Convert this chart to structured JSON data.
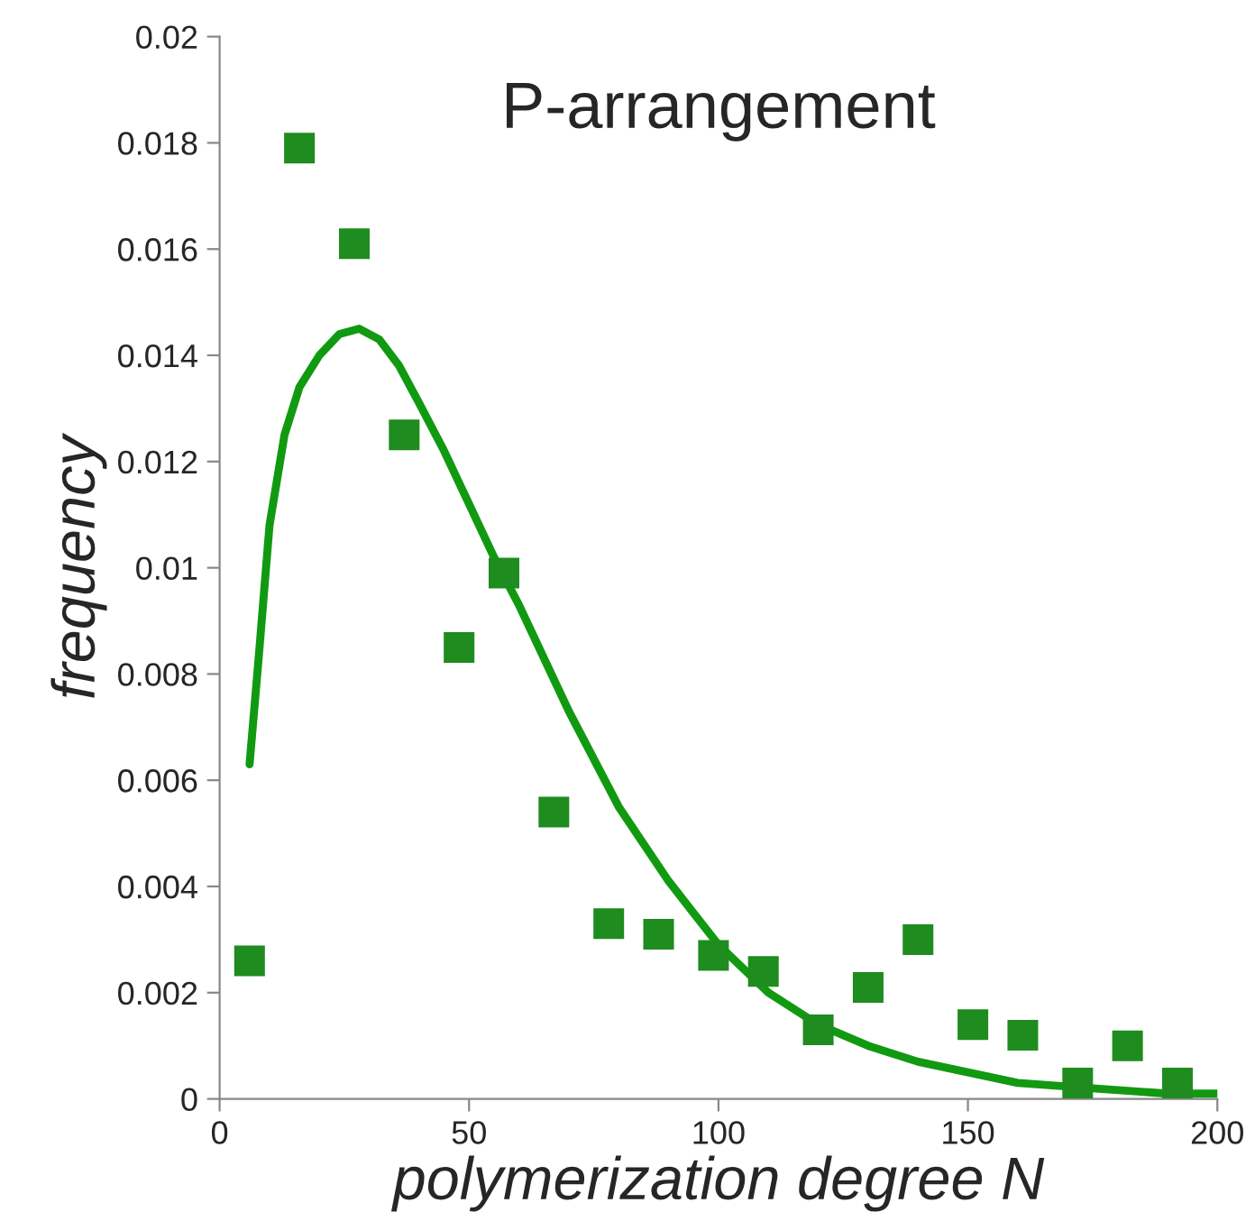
{
  "chart_data": {
    "type": "scatter",
    "title": "P-arrangement",
    "xlabel": "polymerization degree N",
    "ylabel": "frequency",
    "xlim": [
      0,
      200
    ],
    "xticks": [
      0,
      50,
      100,
      150,
      200
    ],
    "ylim": [
      0,
      0.02
    ],
    "yticks": [
      0,
      {
        "value": 0.002,
        "label": "0.002"
      },
      {
        "value": 0.004,
        "label": "0.004"
      },
      {
        "value": 0.006,
        "label": "0.006"
      },
      {
        "value": 0.008,
        "label": "0.008"
      },
      {
        "value": 0.01,
        "label": "0.01"
      },
      {
        "value": 0.012,
        "label": "0.012"
      },
      {
        "value": 0.014,
        "label": "0.014"
      },
      {
        "value": 0.016,
        "label": "0.016"
      },
      {
        "value": 0.018,
        "label": "0.018"
      },
      {
        "value": 0.02,
        "label": "0.02"
      }
    ],
    "grid": false,
    "marker": "square",
    "series": [
      {
        "color": "#1e8c1e",
        "x": [
          6,
          16,
          27,
          37,
          48,
          57,
          67,
          78,
          88,
          99,
          109,
          120,
          130,
          140,
          151,
          161,
          172,
          182,
          192
        ],
        "values": [
          0.0026,
          0.0179,
          0.0161,
          0.0125,
          0.0085,
          0.0099,
          0.0054,
          0.0033,
          0.0031,
          0.0027,
          0.0024,
          0.0013,
          0.0021,
          0.003,
          0.0014,
          0.0012,
          0.0003,
          0.001,
          0.0003
        ]
      },
      {
        "type": "line",
        "marker": "none",
        "color": "#119a11",
        "x": [
          6,
          8,
          10,
          13,
          16,
          20,
          24,
          28,
          32,
          36,
          40,
          45,
          50,
          55,
          60,
          70,
          80,
          90,
          100,
          110,
          120,
          130,
          140,
          150,
          160,
          175,
          190,
          200
        ],
        "values": [
          0.0063,
          0.0085,
          0.0108,
          0.0125,
          0.0134,
          0.014,
          0.0144,
          0.0145,
          0.0143,
          0.0138,
          0.0131,
          0.0122,
          0.0112,
          0.0102,
          0.0093,
          0.0073,
          0.0055,
          0.0041,
          0.0029,
          0.002,
          0.0014,
          0.001,
          0.0007,
          0.0005,
          0.0003,
          0.0002,
          0.0001,
          0.0001
        ]
      }
    ]
  }
}
